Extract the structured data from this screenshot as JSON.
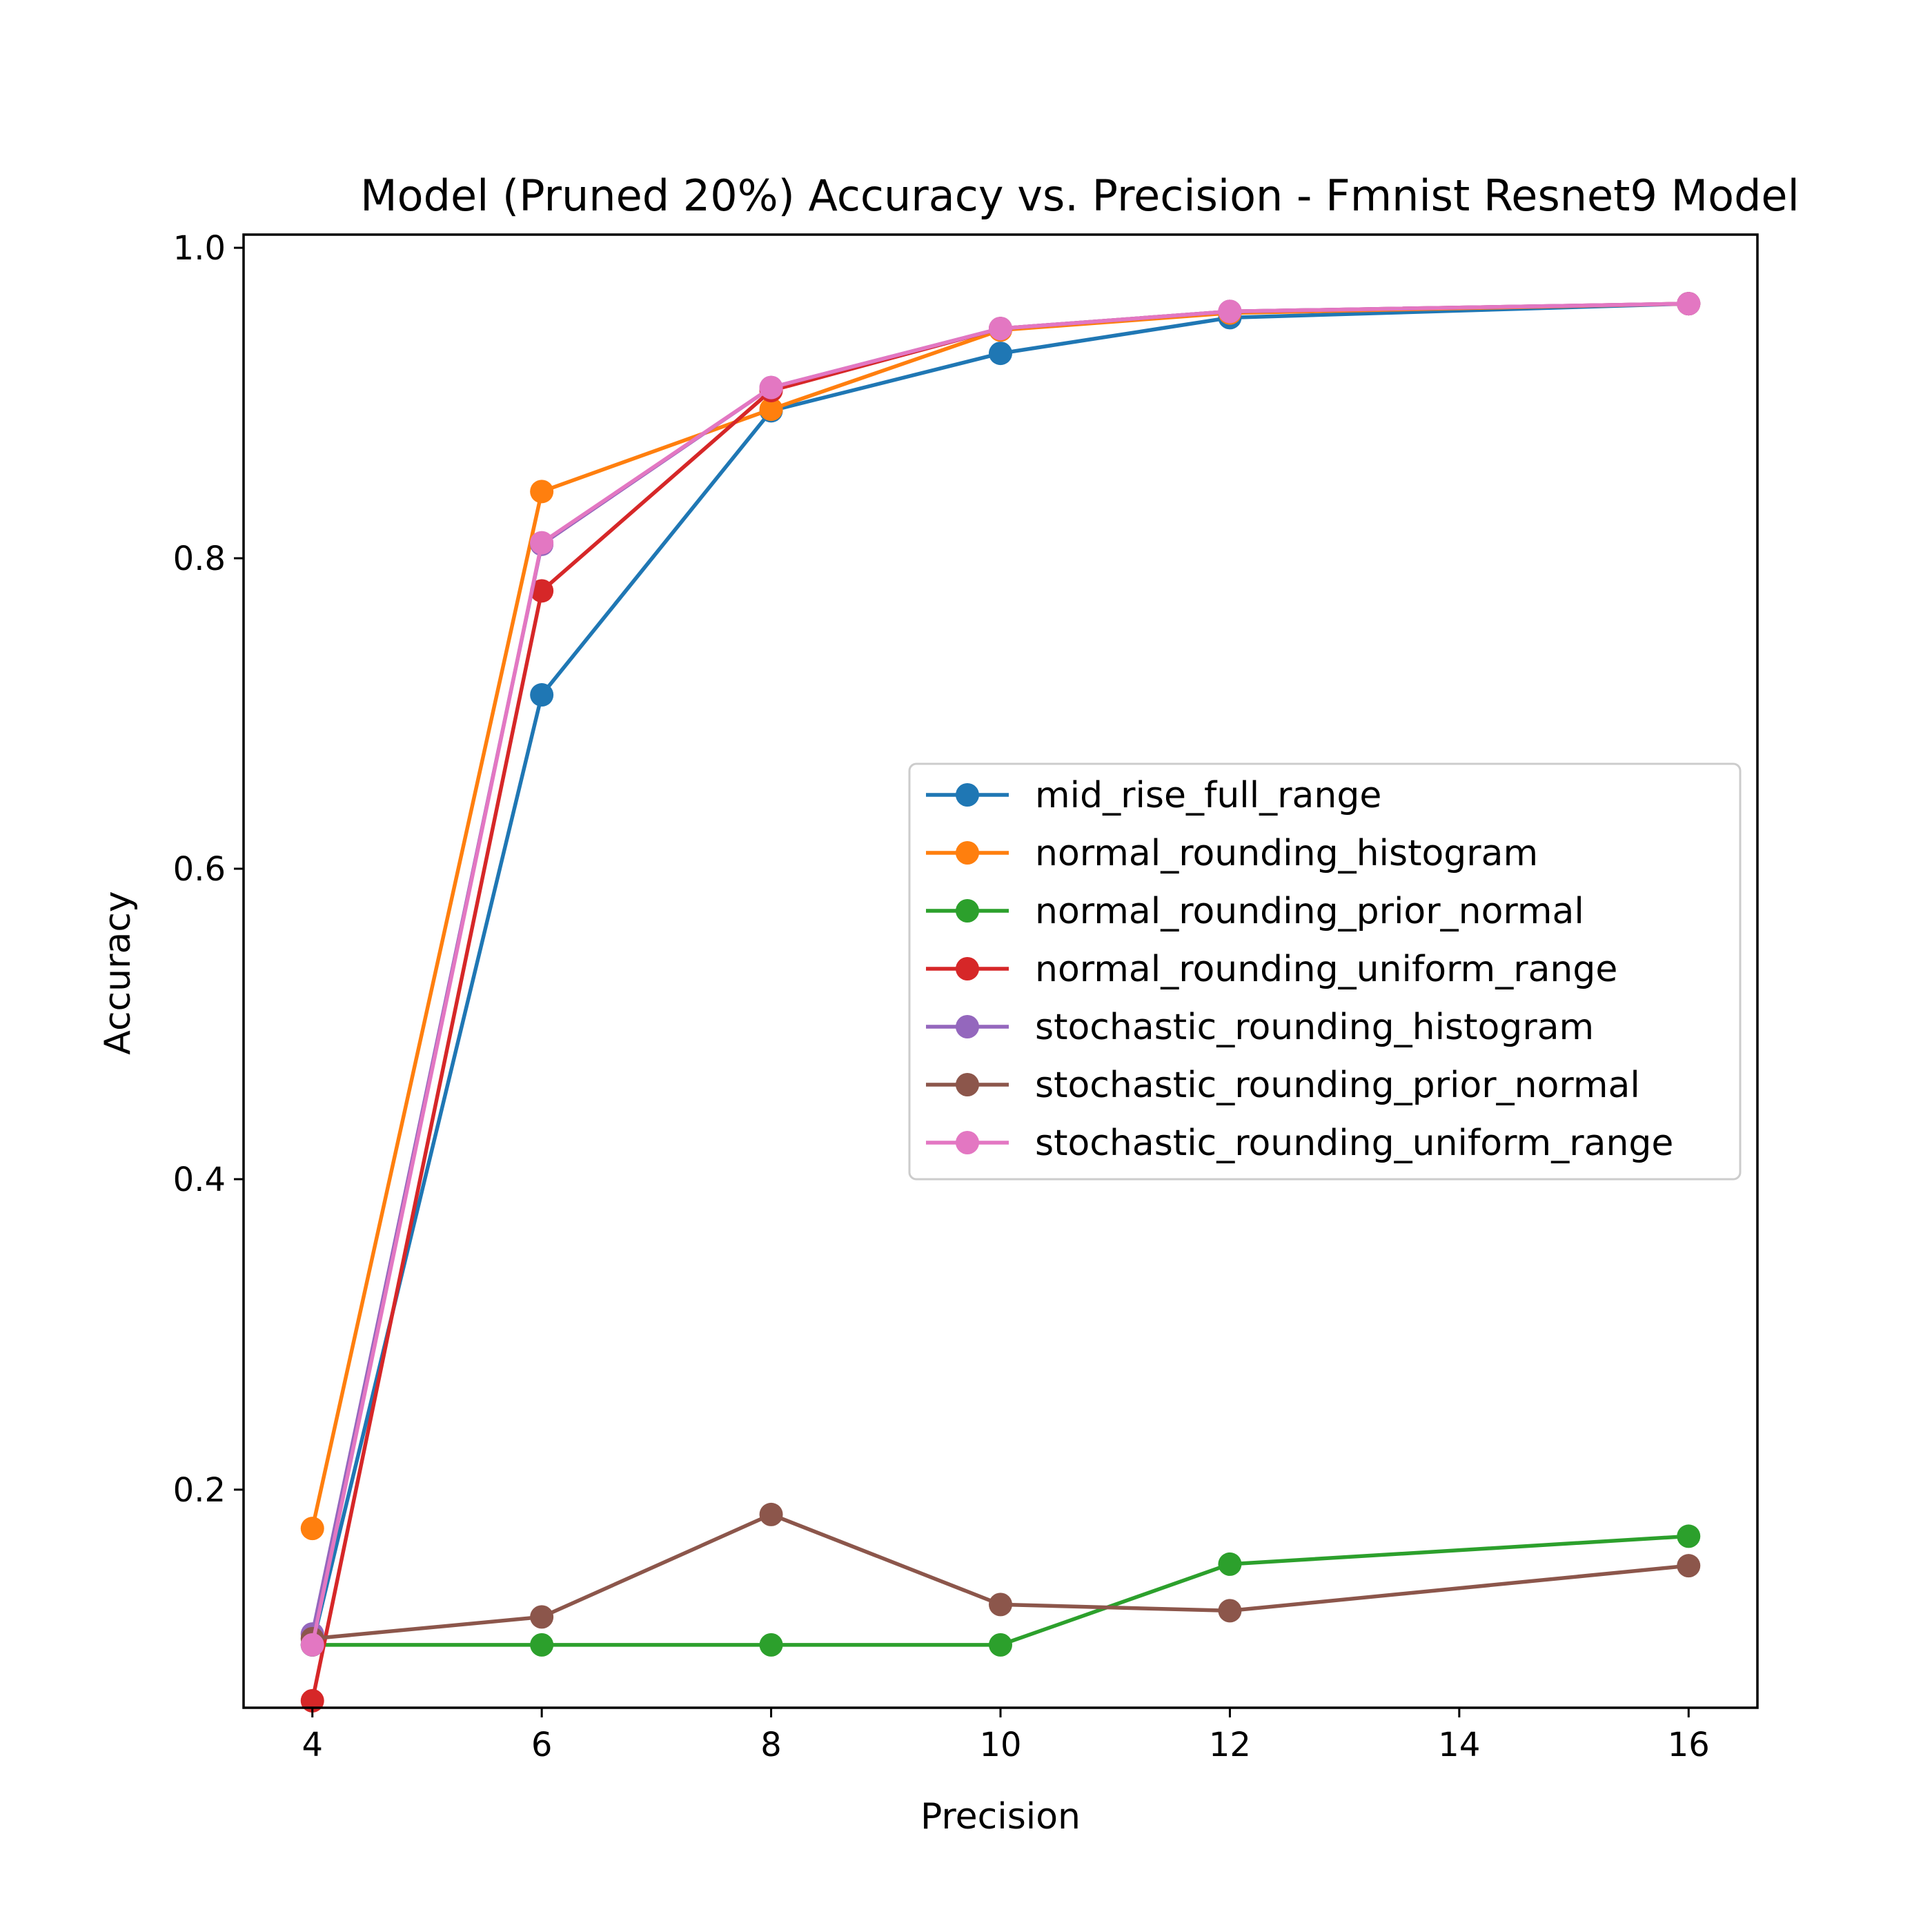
{
  "chart_data": {
    "type": "line",
    "title": "Model (Pruned 20%) Accuracy vs. Precision - Fmnist Resnet9 Model",
    "xlabel": "Precision",
    "ylabel": "Accuracy",
    "xlim": [
      3.4,
      16.6
    ],
    "ylim": [
      0.0595,
      1.0085
    ],
    "xticks": [
      4,
      6,
      8,
      10,
      12,
      14,
      16
    ],
    "yticks": [
      0.2,
      0.4,
      0.6,
      0.8,
      1.0
    ],
    "xtick_labels": [
      "4",
      "6",
      "8",
      "10",
      12,
      "14",
      "16"
    ],
    "ytick_labels": [
      "0.2",
      "0.4",
      "0.6",
      "0.8",
      "1.0"
    ],
    "x": [
      4,
      6,
      8,
      10,
      12,
      16
    ],
    "grid": false,
    "legend_position": "center-right",
    "series": [
      {
        "name": "mid_rise_full_range",
        "color": "#1f77b4",
        "values": [
          0.1,
          0.712,
          0.895,
          0.932,
          0.955,
          0.964
        ]
      },
      {
        "name": "normal_rounding_histogram",
        "color": "#ff7f0e",
        "values": [
          0.175,
          0.843,
          0.896,
          0.947,
          0.958,
          0.964
        ]
      },
      {
        "name": "normal_rounding_prior_normal",
        "color": "#2ca02c",
        "values": [
          0.1,
          0.1,
          0.1,
          0.1,
          0.152,
          0.17
        ]
      },
      {
        "name": "normal_rounding_uniform_range",
        "color": "#d62728",
        "values": [
          0.064,
          0.779,
          0.908,
          0.948,
          0.959,
          0.964
        ]
      },
      {
        "name": "stochastic_rounding_histogram",
        "color": "#9467bd",
        "values": [
          0.107,
          0.809,
          0.91,
          0.948,
          0.959,
          0.964
        ]
      },
      {
        "name": "stochastic_rounding_prior_normal",
        "color": "#8c564b",
        "values": [
          0.104,
          0.118,
          0.184,
          0.126,
          0.122,
          0.151
        ]
      },
      {
        "name": "stochastic_rounding_uniform_range",
        "color": "#e377c2",
        "values": [
          0.1,
          0.81,
          0.91,
          0.948,
          0.959,
          0.964
        ]
      }
    ]
  }
}
